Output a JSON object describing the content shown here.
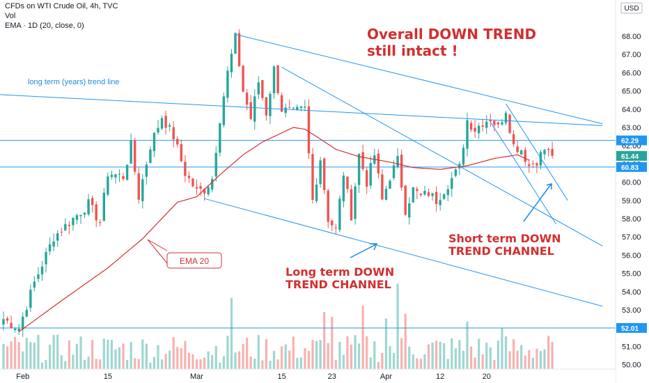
{
  "header": {
    "title": "CFDs on WTI Crude Oil, 4h, TVC",
    "vol": "Vol",
    "ema": "EMA · 1D (20, close, 0)"
  },
  "currency": "USD",
  "annotations": {
    "overall_line1": "Overall DOWN TREND",
    "overall_line2": "still intact !",
    "long_term_trend_line": "long term (years) trend line",
    "ema_label": "EMA 20",
    "long_channel_line1": "Long term DOWN",
    "long_channel_line2": "TREND CHANNEL",
    "short_channel_line1": "Short term DOWN",
    "short_channel_line2": "TREND CHANNEL"
  },
  "colors": {
    "up": "#26a69a",
    "down": "#ef5350",
    "trendline": "#2196f3",
    "ema": "#d32f2f",
    "annotation_red": "#d32f2f"
  },
  "chart_data": {
    "type": "line",
    "symbol": "WTI Crude Oil CFD",
    "interval": "4h",
    "ylim": [
      49.8,
      69.2
    ],
    "y_ticks": [
      50,
      51,
      52,
      53,
      54,
      55,
      56,
      57,
      58,
      59,
      60,
      61,
      62,
      63,
      64,
      65,
      66,
      67,
      68
    ],
    "y_tick_labels": [
      "50.00",
      "51.00",
      "52.00",
      "53.00",
      "54.00",
      "55.00",
      "56.00",
      "57.00",
      "58.00",
      "59.00",
      "60.00",
      "61.00",
      "62.00",
      "63.00",
      "64.00",
      "65.00",
      "66.00",
      "67.00",
      "68.00"
    ],
    "x_ticks": [
      {
        "label": "Feb",
        "bar": 5
      },
      {
        "label": "15",
        "bar": 27
      },
      {
        "label": "Mar",
        "bar": 50
      },
      {
        "label": "15",
        "bar": 72
      },
      {
        "label": "23",
        "bar": 85
      },
      {
        "label": "Apr",
        "bar": 99
      },
      {
        "label": "12",
        "bar": 113
      },
      {
        "label": "20",
        "bar": 125
      }
    ],
    "bars_total": 165,
    "price_badges": [
      {
        "label": "62.29",
        "value": 62.29,
        "color": "#2196f3"
      },
      {
        "label": "61.44",
        "value": 61.44,
        "color": "#26a69a"
      },
      {
        "label": "60.83",
        "value": 60.83,
        "color": "#2196f3"
      },
      {
        "label": "52.01",
        "value": 52.01,
        "color": "#2196f3"
      }
    ],
    "horizontal_levels": [
      62.29,
      60.83,
      52.01
    ],
    "close_keypoints": [
      {
        "bar": 0,
        "value": 52.5
      },
      {
        "bar": 4,
        "value": 52.0
      },
      {
        "bar": 8,
        "value": 54.5
      },
      {
        "bar": 13,
        "value": 57.0
      },
      {
        "bar": 18,
        "value": 58.0
      },
      {
        "bar": 22,
        "value": 58.8
      },
      {
        "bar": 25,
        "value": 57.8
      },
      {
        "bar": 27,
        "value": 60.5
      },
      {
        "bar": 31,
        "value": 60.3
      },
      {
        "bar": 33,
        "value": 62.0
      },
      {
        "bar": 35,
        "value": 59.2
      },
      {
        "bar": 38,
        "value": 62.0
      },
      {
        "bar": 41,
        "value": 63.6
      },
      {
        "bar": 44,
        "value": 62.5
      },
      {
        "bar": 47,
        "value": 60.5
      },
      {
        "bar": 50,
        "value": 59.5
      },
      {
        "bar": 52,
        "value": 59.6
      },
      {
        "bar": 54,
        "value": 60.2
      },
      {
        "bar": 56,
        "value": 63.5
      },
      {
        "bar": 58,
        "value": 66.0
      },
      {
        "bar": 60,
        "value": 67.9
      },
      {
        "bar": 62,
        "value": 65.0
      },
      {
        "bar": 64,
        "value": 63.5
      },
      {
        "bar": 66,
        "value": 65.5
      },
      {
        "bar": 68,
        "value": 63.8
      },
      {
        "bar": 70,
        "value": 66.2
      },
      {
        "bar": 72,
        "value": 64.0
      },
      {
        "bar": 75,
        "value": 63.8
      },
      {
        "bar": 78,
        "value": 64.0
      },
      {
        "bar": 80,
        "value": 59.0
      },
      {
        "bar": 82,
        "value": 61.3
      },
      {
        "bar": 84,
        "value": 58.0
      },
      {
        "bar": 86,
        "value": 57.4
      },
      {
        "bar": 88,
        "value": 60.5
      },
      {
        "bar": 90,
        "value": 58.2
      },
      {
        "bar": 92,
        "value": 61.5
      },
      {
        "bar": 94,
        "value": 60.0
      },
      {
        "bar": 96,
        "value": 61.5
      },
      {
        "bar": 98,
        "value": 59.0
      },
      {
        "bar": 100,
        "value": 60.3
      },
      {
        "bar": 102,
        "value": 61.2
      },
      {
        "bar": 104,
        "value": 58.5
      },
      {
        "bar": 106,
        "value": 59.6
      },
      {
        "bar": 108,
        "value": 59.2
      },
      {
        "bar": 110,
        "value": 59.4
      },
      {
        "bar": 112,
        "value": 59.0
      },
      {
        "bar": 114,
        "value": 59.6
      },
      {
        "bar": 116,
        "value": 60.2
      },
      {
        "bar": 118,
        "value": 60.8
      },
      {
        "bar": 120,
        "value": 63.4
      },
      {
        "bar": 122,
        "value": 62.9
      },
      {
        "bar": 124,
        "value": 63.3
      },
      {
        "bar": 126,
        "value": 63.5
      },
      {
        "bar": 128,
        "value": 63.0
      },
      {
        "bar": 130,
        "value": 64.0
      },
      {
        "bar": 132,
        "value": 62.0
      },
      {
        "bar": 134,
        "value": 61.8
      },
      {
        "bar": 136,
        "value": 60.9
      },
      {
        "bar": 138,
        "value": 61.2
      },
      {
        "bar": 140,
        "value": 61.8
      },
      {
        "bar": 142,
        "value": 61.44
      }
    ],
    "ema_keypoints": [
      {
        "bar": 4,
        "value": 51.8
      },
      {
        "bar": 15,
        "value": 53.5
      },
      {
        "bar": 27,
        "value": 55.3
      },
      {
        "bar": 36,
        "value": 56.9
      },
      {
        "bar": 45,
        "value": 58.9
      },
      {
        "bar": 50,
        "value": 59.2
      },
      {
        "bar": 56,
        "value": 60.4
      },
      {
        "bar": 62,
        "value": 61.5
      },
      {
        "bar": 67,
        "value": 62.2
      },
      {
        "bar": 75,
        "value": 63.0
      },
      {
        "bar": 78,
        "value": 62.9
      },
      {
        "bar": 81,
        "value": 62.5
      },
      {
        "bar": 86,
        "value": 61.8
      },
      {
        "bar": 92,
        "value": 61.4
      },
      {
        "bar": 100,
        "value": 61.1
      },
      {
        "bar": 106,
        "value": 60.8
      },
      {
        "bar": 113,
        "value": 60.7
      },
      {
        "bar": 120,
        "value": 60.9
      },
      {
        "bar": 127,
        "value": 61.3
      },
      {
        "bar": 133,
        "value": 61.5
      },
      {
        "bar": 136,
        "value": 61.2
      }
    ],
    "trendlines": [
      {
        "name": "long-term-trend-line",
        "from": {
          "bar": -1,
          "value": 64.8
        },
        "to": {
          "bar": 155,
          "value": 63.1
        }
      },
      {
        "name": "long-channel-top",
        "from": {
          "bar": 60,
          "value": 68.1
        },
        "to": {
          "bar": 155,
          "value": 63.2
        }
      },
      {
        "name": "long-channel-bottom",
        "from": {
          "bar": 52,
          "value": 59.1
        },
        "to": {
          "bar": 155,
          "value": 53.2
        }
      },
      {
        "name": "mid-channel-line",
        "from": {
          "bar": 72,
          "value": 66.3
        },
        "to": {
          "bar": 155,
          "value": 56.5
        }
      },
      {
        "name": "short-channel-top",
        "from": {
          "bar": 130,
          "value": 64.3
        },
        "to": {
          "bar": 146,
          "value": 59.0
        }
      },
      {
        "name": "short-channel-bottom",
        "from": {
          "bar": 126,
          "value": 63.3
        },
        "to": {
          "bar": 143,
          "value": 57.7
        }
      }
    ],
    "volume": {
      "max_value": 5.5,
      "spikes": [
        {
          "bar": 59,
          "value": 4.5
        },
        {
          "bar": 83,
          "value": 3.6
        },
        {
          "bar": 85,
          "value": 3.3
        },
        {
          "bar": 93,
          "value": 4.0
        },
        {
          "bar": 99,
          "value": 3.2
        },
        {
          "bar": 102,
          "value": 5.4
        },
        {
          "bar": 104,
          "value": 3.5
        },
        {
          "bar": 120,
          "value": 3.0
        },
        {
          "bar": 129,
          "value": 2.6
        }
      ]
    }
  }
}
